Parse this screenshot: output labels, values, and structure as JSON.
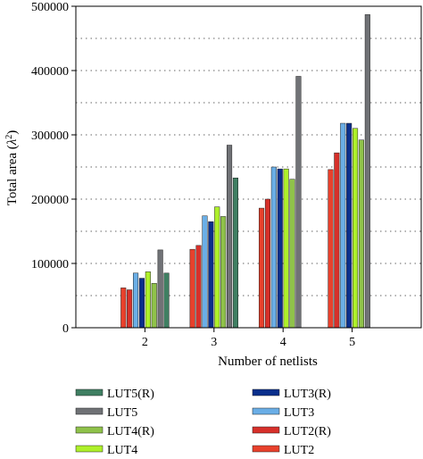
{
  "chart_data": {
    "type": "bar",
    "title": "",
    "xlabel": "Number of netlists",
    "ylabel": "Total area (λ²)",
    "ylabel_base": "Total area (",
    "ylabel_symbol": "λ",
    "ylabel_sup": "2",
    "ylabel_end": ")",
    "categories": [
      "2",
      "3",
      "4",
      "5"
    ],
    "ylim": [
      0,
      500000
    ],
    "yticks": [
      "0",
      "100000",
      "200000",
      "300000",
      "400000",
      "500000"
    ],
    "grid": "horizontal-dotted",
    "legend_position": "bottom",
    "series": [
      {
        "name": "LUT2",
        "color": "#e8412c",
        "values": [
          62000,
          122000,
          186000,
          246000
        ]
      },
      {
        "name": "LUT2(R)",
        "color": "#d7302a",
        "values": [
          59000,
          128000,
          200000,
          272000
        ]
      },
      {
        "name": "LUT3",
        "color": "#6aaee6",
        "values": [
          85000,
          174000,
          250000,
          318000
        ]
      },
      {
        "name": "LUT3(R)",
        "color": "#0a2f8c",
        "values": [
          77000,
          165000,
          247000,
          318000
        ]
      },
      {
        "name": "LUT4",
        "color": "#aef02a",
        "values": [
          87000,
          188000,
          247000,
          310000
        ]
      },
      {
        "name": "LUT4(R)",
        "color": "#8fc24a",
        "values": [
          69000,
          173000,
          231000,
          292000
        ]
      },
      {
        "name": "LUT5",
        "color": "#707276",
        "values": [
          121000,
          284000,
          391000,
          487000
        ]
      },
      {
        "name": "LUT5(R)",
        "color": "#3f7f62",
        "values": [
          85000,
          233000,
          null,
          null
        ]
      }
    ],
    "legend_columns": [
      [
        "LUT5(R)",
        "LUT5",
        "LUT4(R)",
        "LUT4"
      ],
      [
        "LUT3(R)",
        "LUT3",
        "LUT2(R)",
        "LUT2"
      ]
    ]
  }
}
